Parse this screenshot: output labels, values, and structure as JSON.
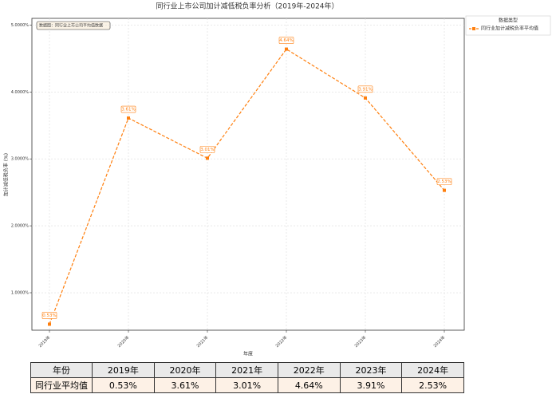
{
  "chart_data": {
    "type": "line",
    "title": "同行业上市公司加计减低税负率分析（2019年-2024年）",
    "annotation": "数据图：同行业上市公司平均值数据",
    "x_label": "年度",
    "y_label": "加计减低税负率 (%)",
    "legend_title": "数据类型",
    "legend_position": "upper right",
    "categories": [
      "2019年",
      "2020年",
      "2021年",
      "2022年",
      "2023年",
      "2024年"
    ],
    "series": [
      {
        "name": "同行业加计减税负率平均值",
        "color": "#ff7f0e",
        "values": [
          0.53,
          3.61,
          3.01,
          4.64,
          3.91,
          2.53
        ],
        "value_labels": [
          "0.53%",
          "3.61%",
          "3.01%",
          "4.64%",
          "3.91%",
          "2.53%"
        ]
      }
    ],
    "ylim": [
      0.44,
      5.1
    ],
    "yticks": [
      {
        "value": 1,
        "label": "1.0000%"
      },
      {
        "value": 2,
        "label": "2.0000%"
      },
      {
        "value": 3,
        "label": "3.0000%"
      },
      {
        "value": 4,
        "label": "4.0000%"
      },
      {
        "value": 5,
        "label": "5.0000%"
      }
    ],
    "grid": true
  },
  "table": {
    "header_label": "年份",
    "row_label": "同行业平均值"
  }
}
